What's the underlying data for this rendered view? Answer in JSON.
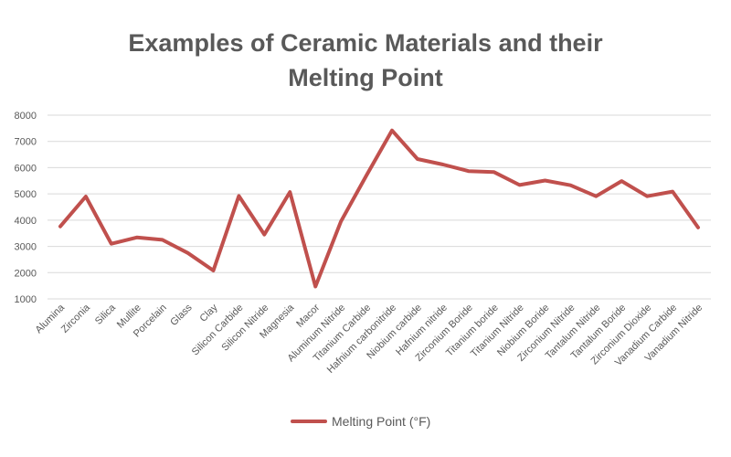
{
  "chart_data": {
    "type": "line",
    "title_line1": "Examples of Ceramic Materials and their",
    "title_line2": "Melting Point",
    "xlabel": "",
    "ylabel": "",
    "ylim": [
      1000,
      8000
    ],
    "yticks": [
      "1000",
      "2000",
      "3000",
      "4000",
      "5000",
      "6000",
      "7000",
      "8000"
    ],
    "grid": true,
    "legend_position": "bottom",
    "categories": [
      "Alumina",
      "Zirconia",
      "Silica",
      "Mullite",
      "Porcelain",
      "Glass",
      "Clay",
      "Silicon Carbide",
      "Silicon Nitride",
      "Magnesia",
      "Macor",
      "Aluminum Nitride",
      "Titanium Carbide",
      "Hafnium carbonitride",
      "Niobium carbide",
      "Hafnium nitride",
      "Zirconium Boride",
      "Titanium boride",
      "Titanium Nitride",
      "Niobium Boride",
      "Zirconium Nitride",
      "Tantalum Nitride",
      "Tantalum Boride",
      "Zirconium Dioxide",
      "Vanadium Carbide",
      "Vanadium Nitride"
    ],
    "series": [
      {
        "name": "Melting Point (°F)",
        "color": "#c0504d",
        "values": [
          3760,
          4900,
          3100,
          3340,
          3250,
          2750,
          2080,
          4920,
          3450,
          5070,
          1470,
          3950,
          5700,
          7420,
          6330,
          6120,
          5870,
          5830,
          5340,
          5510,
          5330,
          4910,
          5490,
          4910,
          5090,
          3720
        ]
      }
    ]
  }
}
